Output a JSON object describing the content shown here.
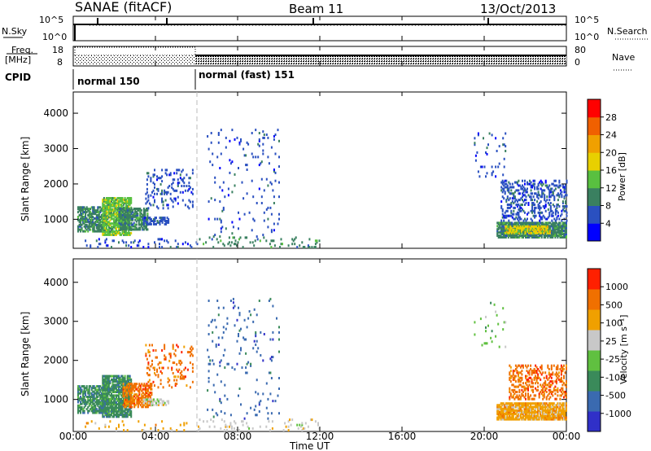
{
  "header": {
    "station": "SANAE (fitACF)",
    "beam": "Beam 11",
    "date": "13/Oct/2013"
  },
  "noise_panel": {
    "left_label": "N.Sky",
    "right_label": "N.Search",
    "left_ticks": [
      "10^5",
      "10^0"
    ],
    "right_ticks": [
      "10^5",
      "10^0"
    ]
  },
  "freq_panel": {
    "left_label_line1": "Freq.",
    "left_label_line2": "[MHz]",
    "left_ticks": [
      "18",
      "8"
    ],
    "right_ticks": [
      "80",
      "0"
    ],
    "right_label": "Nave"
  },
  "cpid": {
    "label": "CPID",
    "segments": [
      {
        "name": "normal 150",
        "start_hour": 0,
        "end_hour": 6
      },
      {
        "name": "normal (fast) 151",
        "start_hour": 6,
        "end_hour": 24
      }
    ]
  },
  "x_axis": {
    "label": "Time UT",
    "ticks": [
      "00:00",
      "04:00",
      "08:00",
      "12:00",
      "16:00",
      "20:00",
      "00:00"
    ]
  },
  "power_panel": {
    "ylabel": "Slant Range [km]",
    "yticks": [
      "4000",
      "3000",
      "2000",
      "1000"
    ],
    "colorbar_label": "Power [dB]",
    "colorbar_ticks": [
      "28",
      "24",
      "20",
      "16",
      "12",
      "8",
      "4"
    ]
  },
  "velocity_panel": {
    "ylabel": "Slant Range [km]",
    "yticks": [
      "4000",
      "3000",
      "2000",
      "1000"
    ],
    "colorbar_label": "Velocity [m s⁻¹]",
    "colorbar_ticks": [
      "1000",
      "500",
      "100",
      "25",
      "-25",
      "-100",
      "-500",
      "-1000"
    ]
  },
  "chart_data": {
    "type": "heatmap",
    "x_range_hours": [
      0,
      24
    ],
    "y_range_km": [
      180,
      4600
    ],
    "power_colors": [
      "#0000ff",
      "#2a50c0",
      "#3a8060",
      "#59c040",
      "#e8d000",
      "#f0a000",
      "#f06000",
      "#ff0000"
    ],
    "velocity_colors": [
      "#3030c8",
      "#3a6ab0",
      "#3a8a5a",
      "#60c040",
      "#c8c8c8",
      "#f0a000",
      "#f07000",
      "#ff2000"
    ],
    "power_clusters": [
      {
        "t0": 0.2,
        "t1": 1.6,
        "r0": 650,
        "r1": 1350,
        "c": 2,
        "d": 0.7
      },
      {
        "t0": 1.4,
        "t1": 2.8,
        "r0": 550,
        "r1": 1600,
        "c": 3,
        "d": 0.8
      },
      {
        "t0": 2.2,
        "t1": 3.6,
        "r0": 700,
        "r1": 1300,
        "c": 2,
        "d": 0.7
      },
      {
        "t0": 3.4,
        "t1": 4.6,
        "r0": 850,
        "r1": 1050,
        "c": 1,
        "d": 0.6
      },
      {
        "t0": 3.5,
        "t1": 5.8,
        "r0": 1300,
        "r1": 2400,
        "c": 1,
        "d": 0.15
      },
      {
        "t0": 0.5,
        "t1": 6.0,
        "r0": 200,
        "r1": 450,
        "c": 1,
        "d": 0.08
      },
      {
        "t0": 6.0,
        "t1": 12.0,
        "r0": 200,
        "r1": 500,
        "c": 2,
        "d": 0.08
      },
      {
        "t0": 6.5,
        "t1": 10.0,
        "r0": 500,
        "r1": 3600,
        "c": 1,
        "d": 0.03
      },
      {
        "t0": 20.6,
        "t1": 24.0,
        "r0": 480,
        "r1": 900,
        "c": 2,
        "d": 0.85
      },
      {
        "t0": 21.0,
        "t1": 23.2,
        "r0": 600,
        "r1": 800,
        "c": 4,
        "d": 0.6
      },
      {
        "t0": 20.8,
        "t1": 24.0,
        "r0": 950,
        "r1": 2100,
        "c": 1,
        "d": 0.3
      },
      {
        "t0": 19.5,
        "t1": 21.0,
        "r0": 2200,
        "r1": 3500,
        "c": 1,
        "d": 0.04
      }
    ],
    "velocity_clusters": [
      {
        "t0": 0.2,
        "t1": 1.6,
        "r0": 650,
        "r1": 1350,
        "c": 2,
        "d": 0.7
      },
      {
        "t0": 1.4,
        "t1": 2.8,
        "r0": 550,
        "r1": 1600,
        "c": 2,
        "d": 0.8
      },
      {
        "t0": 2.4,
        "t1": 3.8,
        "r0": 800,
        "r1": 1400,
        "c": 6,
        "d": 0.6
      },
      {
        "t0": 3.4,
        "t1": 4.6,
        "r0": 850,
        "r1": 1000,
        "c": 4,
        "d": 0.5
      },
      {
        "t0": 3.5,
        "t1": 5.8,
        "r0": 1300,
        "r1": 2400,
        "c": 6,
        "d": 0.12
      },
      {
        "t0": 0.5,
        "t1": 6.0,
        "r0": 200,
        "r1": 450,
        "c": 5,
        "d": 0.08
      },
      {
        "t0": 6.0,
        "t1": 12.0,
        "r0": 200,
        "r1": 500,
        "c": 4,
        "d": 0.08
      },
      {
        "t0": 6.5,
        "t1": 10.0,
        "r0": 500,
        "r1": 3600,
        "c": 1,
        "d": 0.03
      },
      {
        "t0": 20.6,
        "t1": 24.0,
        "r0": 480,
        "r1": 900,
        "c": 5,
        "d": 0.85
      },
      {
        "t0": 21.2,
        "t1": 24.0,
        "r0": 1000,
        "r1": 1900,
        "c": 6,
        "d": 0.35
      },
      {
        "t0": 19.5,
        "t1": 21.0,
        "r0": 2200,
        "r1": 3500,
        "c": 3,
        "d": 0.04
      }
    ]
  }
}
